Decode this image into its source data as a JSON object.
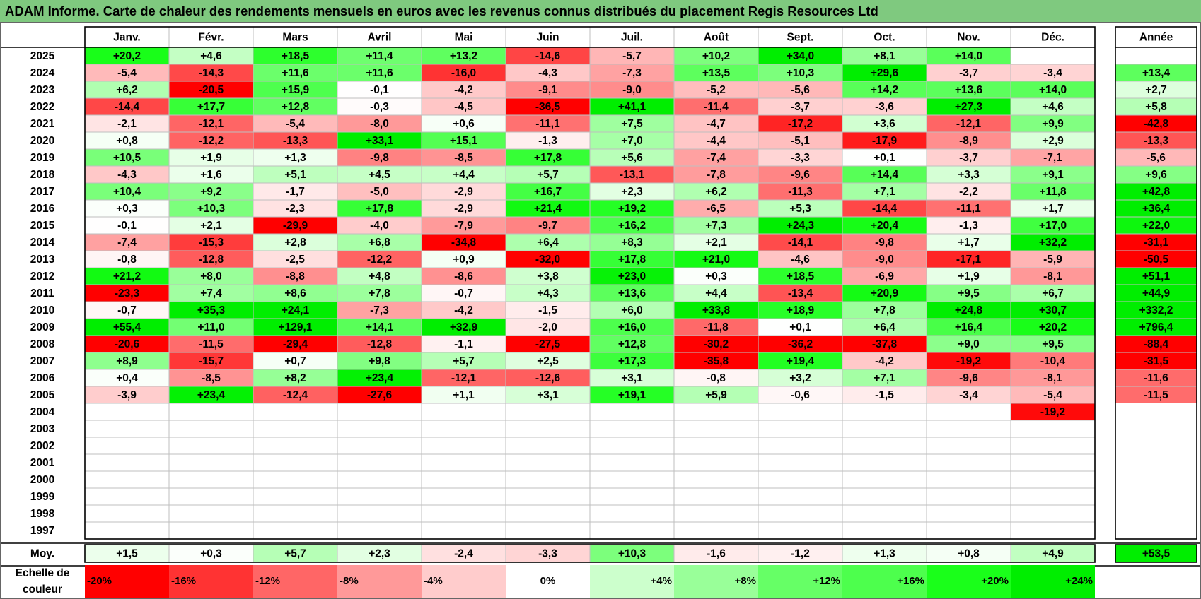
{
  "title": "ADAM Informe. Carte de chaleur des rendements mensuels en euros avec les revenus connus distribués du placement Regis Resources Ltd",
  "chart_data": {
    "type": "heatmap",
    "months": [
      "Janv.",
      "Févr.",
      "Mars",
      "Avril",
      "Mai",
      "Juin",
      "Juil.",
      "Août",
      "Sept.",
      "Oct.",
      "Nov.",
      "Déc."
    ],
    "annual_header": "Année",
    "rows": [
      {
        "year": "2025",
        "values": [
          "+20,2",
          "+4,6",
          "+18,5",
          "+11,4",
          "+13,2",
          "-14,6",
          "-5,7",
          "+10,2",
          "+34,0",
          "+8,1",
          "+14,0",
          ""
        ],
        "annual": ""
      },
      {
        "year": "2024",
        "values": [
          "-5,4",
          "-14,3",
          "+11,6",
          "+11,6",
          "-16,0",
          "-4,3",
          "-7,3",
          "+13,5",
          "+10,3",
          "+29,6",
          "-3,7",
          "-3,4"
        ],
        "annual": "+13,4"
      },
      {
        "year": "2023",
        "values": [
          "+6,2",
          "-20,5",
          "+15,9",
          "-0,1",
          "-4,2",
          "-9,1",
          "-9,0",
          "-5,2",
          "-5,6",
          "+14,2",
          "+13,6",
          "+14,0"
        ],
        "annual": "+2,7"
      },
      {
        "year": "2022",
        "values": [
          "-14,4",
          "+17,7",
          "+12,8",
          "-0,3",
          "-4,5",
          "-36,5",
          "+41,1",
          "-11,4",
          "-3,7",
          "-3,6",
          "+27,3",
          "+4,6"
        ],
        "annual": "+5,8"
      },
      {
        "year": "2021",
        "values": [
          "-2,1",
          "-12,1",
          "-5,4",
          "-8,0",
          "+0,6",
          "-11,1",
          "+7,5",
          "-4,7",
          "-17,2",
          "+3,6",
          "-12,1",
          "+9,9"
        ],
        "annual": "-42,8"
      },
      {
        "year": "2020",
        "values": [
          "+0,8",
          "-12,2",
          "-13,3",
          "+33,1",
          "+15,1",
          "-1,3",
          "+7,0",
          "-4,4",
          "-5,1",
          "-17,9",
          "-8,9",
          "+2,9"
        ],
        "annual": "-13,3"
      },
      {
        "year": "2019",
        "values": [
          "+10,5",
          "+1,9",
          "+1,3",
          "-9,8",
          "-8,5",
          "+17,8",
          "+5,6",
          "-7,4",
          "-3,3",
          "+0,1",
          "-3,7",
          "-7,1"
        ],
        "annual": "-5,6"
      },
      {
        "year": "2018",
        "values": [
          "-4,3",
          "+1,6",
          "+5,1",
          "+4,5",
          "+4,4",
          "+5,7",
          "-13,1",
          "-7,8",
          "-9,6",
          "+14,4",
          "+3,3",
          "+9,1"
        ],
        "annual": "+9,6"
      },
      {
        "year": "2017",
        "values": [
          "+10,4",
          "+9,2",
          "-1,7",
          "-5,0",
          "-2,9",
          "+16,7",
          "+2,3",
          "+6,2",
          "-11,3",
          "+7,1",
          "-2,2",
          "+11,8"
        ],
        "annual": "+42,8"
      },
      {
        "year": "2016",
        "values": [
          "+0,3",
          "+10,3",
          "-2,3",
          "+17,8",
          "-2,9",
          "+21,4",
          "+19,2",
          "-6,5",
          "+5,3",
          "-14,4",
          "-11,1",
          "+1,7"
        ],
        "annual": "+36,4"
      },
      {
        "year": "2015",
        "values": [
          "-0,1",
          "+2,1",
          "-29,9",
          "-4,0",
          "-7,9",
          "-9,7",
          "+16,2",
          "+7,3",
          "+24,3",
          "+20,4",
          "-1,3",
          "+17,0"
        ],
        "annual": "+22,0"
      },
      {
        "year": "2014",
        "values": [
          "-7,4",
          "-15,3",
          "+2,8",
          "+6,8",
          "-34,8",
          "+6,4",
          "+8,3",
          "+2,1",
          "-14,1",
          "-9,8",
          "+1,7",
          "+32,2"
        ],
        "annual": "-31,1"
      },
      {
        "year": "2013",
        "values": [
          "-0,8",
          "-12,8",
          "-2,5",
          "-12,2",
          "+0,9",
          "-32,0",
          "+17,8",
          "+21,0",
          "-4,6",
          "-9,0",
          "-17,1",
          "-5,9"
        ],
        "annual": "-50,5"
      },
      {
        "year": "2012",
        "values": [
          "+21,2",
          "+8,0",
          "-8,8",
          "+4,8",
          "-8,6",
          "+3,8",
          "+23,0",
          "+0,3",
          "+18,5",
          "-6,9",
          "+1,9",
          "-8,1"
        ],
        "annual": "+51,1"
      },
      {
        "year": "2011",
        "values": [
          "-23,3",
          "+7,4",
          "+8,6",
          "+7,8",
          "-0,7",
          "+4,3",
          "+13,6",
          "+4,4",
          "-13,4",
          "+20,9",
          "+9,5",
          "+6,7"
        ],
        "annual": "+44,9"
      },
      {
        "year": "2010",
        "values": [
          "-0,7",
          "+35,3",
          "+24,1",
          "-7,3",
          "-4,2",
          "-1,5",
          "+6,0",
          "+33,8",
          "+18,9",
          "+7,8",
          "+24,8",
          "+30,7"
        ],
        "annual": "+332,2"
      },
      {
        "year": "2009",
        "values": [
          "+55,4",
          "+11,0",
          "+129,1",
          "+14,1",
          "+32,9",
          "-2,0",
          "+16,0",
          "-11,8",
          "+0,1",
          "+6,4",
          "+16,4",
          "+20,2"
        ],
        "annual": "+796,4"
      },
      {
        "year": "2008",
        "values": [
          "-20,6",
          "-11,5",
          "-29,4",
          "-12,8",
          "-1,1",
          "-27,5",
          "+12,8",
          "-30,2",
          "-36,2",
          "-37,8",
          "+9,0",
          "+9,5"
        ],
        "annual": "-88,4"
      },
      {
        "year": "2007",
        "values": [
          "+8,9",
          "-15,7",
          "+0,7",
          "+9,8",
          "+5,7",
          "+2,5",
          "+17,3",
          "-35,8",
          "+19,4",
          "-4,2",
          "-19,2",
          "-10,4"
        ],
        "annual": "-31,5"
      },
      {
        "year": "2006",
        "values": [
          "+0,4",
          "-8,5",
          "+8,2",
          "+23,4",
          "-12,1",
          "-12,6",
          "+3,1",
          "-0,8",
          "+3,2",
          "+7,1",
          "-9,6",
          "-8,1"
        ],
        "annual": "-11,6"
      },
      {
        "year": "2005",
        "values": [
          "-3,9",
          "+23,4",
          "-12,4",
          "-27,6",
          "+1,1",
          "+3,1",
          "+19,1",
          "+5,9",
          "-0,6",
          "-1,5",
          "-3,4",
          "-5,4"
        ],
        "annual": "-11,5"
      },
      {
        "year": "2004",
        "values": [
          "",
          "",
          "",
          "",
          "",
          "",
          "",
          "",
          "",
          "",
          "",
          "-19,2"
        ],
        "annual": ""
      },
      {
        "year": "2003",
        "values": [
          "",
          "",
          "",
          "",
          "",
          "",
          "",
          "",
          "",
          "",
          "",
          ""
        ],
        "annual": ""
      },
      {
        "year": "2002",
        "values": [
          "",
          "",
          "",
          "",
          "",
          "",
          "",
          "",
          "",
          "",
          "",
          ""
        ],
        "annual": ""
      },
      {
        "year": "2001",
        "values": [
          "",
          "",
          "",
          "",
          "",
          "",
          "",
          "",
          "",
          "",
          "",
          ""
        ],
        "annual": ""
      },
      {
        "year": "2000",
        "values": [
          "",
          "",
          "",
          "",
          "",
          "",
          "",
          "",
          "",
          "",
          "",
          ""
        ],
        "annual": ""
      },
      {
        "year": "1999",
        "values": [
          "",
          "",
          "",
          "",
          "",
          "",
          "",
          "",
          "",
          "",
          "",
          ""
        ],
        "annual": ""
      },
      {
        "year": "1998",
        "values": [
          "",
          "",
          "",
          "",
          "",
          "",
          "",
          "",
          "",
          "",
          "",
          ""
        ],
        "annual": ""
      },
      {
        "year": "1997",
        "values": [
          "",
          "",
          "",
          "",
          "",
          "",
          "",
          "",
          "",
          "",
          "",
          ""
        ],
        "annual": ""
      }
    ],
    "average": {
      "label": "Moy.",
      "values": [
        "+1,5",
        "+0,3",
        "+5,7",
        "+2,3",
        "-2,4",
        "-3,3",
        "+10,3",
        "-1,6",
        "-1,2",
        "+1,3",
        "+0,8",
        "+4,9"
      ],
      "annual": "+53,5"
    },
    "scale": {
      "label_line1": "Echelle de",
      "label_line2": "couleur",
      "stops": [
        {
          "label": "-20%",
          "value": -20,
          "color": "#ff0000"
        },
        {
          "label": "-16%",
          "value": -16,
          "color": "#ff3333"
        },
        {
          "label": "-12%",
          "value": -12,
          "color": "#ff6666"
        },
        {
          "label": "-8%",
          "value": -8,
          "color": "#ff9999"
        },
        {
          "label": "-4%",
          "value": -4,
          "color": "#ffcccc"
        },
        {
          "label": "0%",
          "value": 0,
          "color": "#ffffff"
        },
        {
          "label": "+4%",
          "value": 4,
          "color": "#ccffcc"
        },
        {
          "label": "+8%",
          "value": 8,
          "color": "#99ff99"
        },
        {
          "label": "+12%",
          "value": 12,
          "color": "#66ff66"
        },
        {
          "label": "+16%",
          "value": 16,
          "color": "#4dff4d"
        },
        {
          "label": "+20%",
          "value": 20,
          "color": "#1aff1a"
        },
        {
          "label": "+24%",
          "value": 24,
          "color": "#00ee00"
        }
      ]
    },
    "colors": {
      "header_bar": "#7fc97f",
      "negative": "#ff0000",
      "positive": "#00ee00",
      "neutral": "#ffffff"
    }
  }
}
